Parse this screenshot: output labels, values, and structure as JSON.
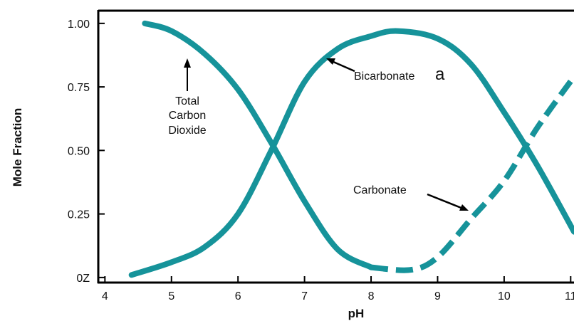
{
  "chart_data": {
    "type": "line",
    "title": "",
    "xlabel": "pH",
    "ylabel": "Mole Fraction",
    "xlim": [
      3.9,
      11.05
    ],
    "ylim": [
      -0.02,
      1.05
    ],
    "x_ticks": [
      4,
      5,
      6,
      7,
      8,
      9,
      10,
      11
    ],
    "x_tick_labels": [
      "4",
      "5",
      "6",
      "7",
      "8",
      "9",
      "10",
      "11"
    ],
    "y_ticks": [
      0,
      0.25,
      0.5,
      0.75,
      1.0
    ],
    "y_tick_labels": [
      "0Z",
      "0.25",
      "0.50",
      "0.75",
      "1.00"
    ],
    "grid": false,
    "line_color": "#16939a",
    "series": [
      {
        "style": "solid",
        "points": [
          [
            4.6,
            1.0
          ],
          [
            5.0,
            0.97
          ],
          [
            5.5,
            0.88
          ],
          [
            6.0,
            0.74
          ],
          [
            6.5,
            0.53
          ],
          [
            7.0,
            0.3
          ],
          [
            7.5,
            0.11
          ],
          [
            8.0,
            0.04
          ]
        ]
      },
      {
        "style": "dashed",
        "points": [
          [
            8.0,
            0.04
          ],
          [
            8.6,
            0.03
          ],
          [
            9.0,
            0.08
          ],
          [
            9.5,
            0.23
          ],
          [
            10.0,
            0.38
          ],
          [
            10.5,
            0.59
          ],
          [
            11.05,
            0.79
          ]
        ]
      },
      {
        "style": "solid",
        "points": [
          [
            4.4,
            0.01
          ],
          [
            5.0,
            0.06
          ],
          [
            5.5,
            0.12
          ],
          [
            6.0,
            0.25
          ],
          [
            6.5,
            0.5
          ],
          [
            7.0,
            0.77
          ],
          [
            7.5,
            0.9
          ],
          [
            8.0,
            0.95
          ],
          [
            8.4,
            0.97
          ],
          [
            9.0,
            0.94
          ],
          [
            9.5,
            0.84
          ],
          [
            10.0,
            0.65
          ],
          [
            10.5,
            0.44
          ],
          [
            11.05,
            0.18
          ]
        ]
      }
    ],
    "annotations": [
      {
        "lines": [
          "Total",
          "Carbon",
          "Dioxide"
        ]
      },
      {
        "text": "Bicarbonate",
        "suffix": "a"
      },
      {
        "text": "Carbonate"
      }
    ]
  }
}
